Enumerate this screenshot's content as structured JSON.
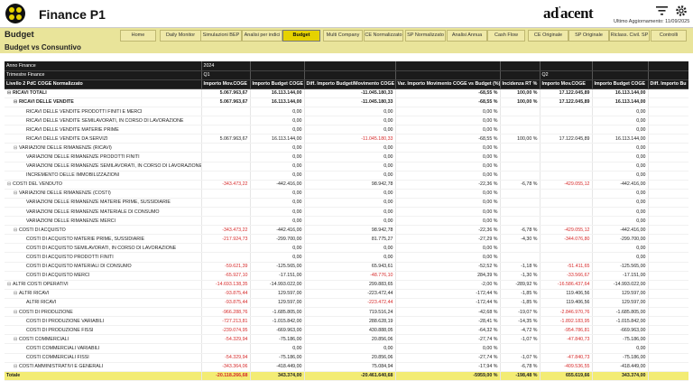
{
  "header": {
    "app_title": "Finance P1",
    "brand_main": "ad",
    "brand_accent": "acent",
    "last_update": "Ultimo Aggiornamento: 11/09/2025"
  },
  "page": {
    "title": "Budget",
    "subtitle": "Budget vs Consuntivo"
  },
  "nav": [
    {
      "label": "Home"
    },
    {
      "label": "Daily Monitor"
    },
    {
      "label": "Simulazioni BEP"
    },
    {
      "label": "Analisi per indici"
    },
    {
      "label": "Budget",
      "active": true
    },
    {
      "label": "Multi Company"
    },
    {
      "label": "CE Normalizzato"
    },
    {
      "label": "SP Normalizzato"
    },
    {
      "label": "Analisi Annua"
    },
    {
      "label": "Cash Flow"
    },
    {
      "label": "CE Originale"
    },
    {
      "label": "SP Originale"
    },
    {
      "label": "Riclass. Civil. SP"
    },
    {
      "label": "Controlli"
    }
  ],
  "table": {
    "header_rows": [
      [
        "Anno Finance",
        "2024",
        "",
        "",
        "",
        "",
        "",
        "",
        ""
      ],
      [
        "Trimestre Finance",
        "Q1",
        "",
        "",
        "",
        "",
        "Q2",
        "",
        ""
      ],
      [
        "Livello 2 PdC COGE Normalizzato",
        "Importo Mov.COGE",
        "Importo Budget COGE",
        "Diff. Importo Budget/Movimento COGE",
        "Var. Importo Movimento COGE vs Budget (%)",
        "Incidenza RT %",
        "Importo Mov.COGE",
        "Importo Budget COGE",
        "Diff. Importo Bu"
      ]
    ],
    "rows": [
      {
        "indent": 0,
        "toggle": "⊟",
        "bold": true,
        "cells": [
          "RICAVI TOTALI",
          "5.067.963,67",
          "16.113.144,00",
          "-11.045.180,33",
          "-68,55 %",
          "100,00 %",
          "17.122.045,89",
          "16.113.144,00",
          ""
        ]
      },
      {
        "indent": 1,
        "toggle": "⊟",
        "bold": true,
        "cells": [
          "RICAVI DELLE VENDITE",
          "5.067.963,67",
          "16.113.144,00",
          "-11.045.180,33",
          "-68,55 %",
          "100,00 %",
          "17.122.045,89",
          "16.113.144,00",
          ""
        ]
      },
      {
        "indent": 2,
        "cells": [
          "RICAVI DELLE VENDITE PRODOTTI FINITI E MERCI",
          "",
          "0,00",
          "0,00",
          "0,00 %",
          "",
          "",
          "0,00",
          ""
        ]
      },
      {
        "indent": 2,
        "cells": [
          "RICAVI DELLE VENDITE SEMILAVORATI, IN CORSO DI LAVORAZIONE",
          "",
          "0,00",
          "0,00",
          "0,00 %",
          "",
          "",
          "0,00",
          ""
        ]
      },
      {
        "indent": 2,
        "cells": [
          "RICAVI DELLE VENDITE MATERIE PRIME",
          "",
          "0,00",
          "0,00",
          "0,00 %",
          "",
          "",
          "0,00",
          ""
        ]
      },
      {
        "indent": 2,
        "cells": [
          "RICAVI DELLE VENDITE DA SERVIZI",
          "5.067.963,67",
          "16.113.144,00",
          "-11.045.180,33",
          "-68,55 %",
          "100,00 %",
          "17.122.045,89",
          "16.113.144,00",
          ""
        ]
      },
      {
        "indent": 1,
        "toggle": "⊟",
        "cells": [
          "VARIAZIONI DELLE RIMANENZE (RICAVI)",
          "",
          "0,00",
          "0,00",
          "0,00 %",
          "",
          "",
          "0,00",
          ""
        ]
      },
      {
        "indent": 2,
        "cells": [
          "VARIAZIONI DELLE RIMANENZE PRODOTTI FINITI",
          "",
          "0,00",
          "0,00",
          "0,00 %",
          "",
          "",
          "0,00",
          ""
        ]
      },
      {
        "indent": 2,
        "cells": [
          "VARIAZIONI DELLE RIMANENZE SEMILAVORATI, IN CORSO DI LAVORAZIONE",
          "",
          "0,00",
          "0,00",
          "0,00 %",
          "",
          "",
          "0,00",
          ""
        ]
      },
      {
        "indent": 2,
        "cells": [
          "INCREMENTO DELLE IMMOBILIZZAZIONI",
          "",
          "0,00",
          "0,00",
          "0,00 %",
          "",
          "",
          "0,00",
          ""
        ]
      },
      {
        "indent": 0,
        "toggle": "⊟",
        "cells": [
          "COSTI DEL VENDUTO",
          "-343.473,22",
          "-442.416,00",
          "98.942,78",
          "-22,36 %",
          "-6,78 %",
          "-429.055,12",
          "-442.416,00",
          ""
        ]
      },
      {
        "indent": 1,
        "toggle": "⊟",
        "cells": [
          "VARIAZIONI DELLE RIMANENZE (COSTI)",
          "",
          "0,00",
          "0,00",
          "0,00 %",
          "",
          "",
          "0,00",
          ""
        ]
      },
      {
        "indent": 2,
        "cells": [
          "VARIAZIONI DELLE RIMANENZE MATERIE PRIME, SUSSIDIARIE",
          "",
          "0,00",
          "0,00",
          "0,00 %",
          "",
          "",
          "0,00",
          ""
        ]
      },
      {
        "indent": 2,
        "cells": [
          "VARIAZIONI DELLE RIMANENZE MATERIALE DI CONSUMO",
          "",
          "0,00",
          "0,00",
          "0,00 %",
          "",
          "",
          "0,00",
          ""
        ]
      },
      {
        "indent": 2,
        "cells": [
          "VARIAZIONI DELLE RIMANENZE MERCI",
          "",
          "0,00",
          "0,00",
          "0,00 %",
          "",
          "",
          "0,00",
          ""
        ]
      },
      {
        "indent": 1,
        "toggle": "⊟",
        "cells": [
          "COSTI DI ACQUISTO",
          "-343.473,22",
          "-442.416,00",
          "98.942,78",
          "-22,36 %",
          "-6,78 %",
          "-429.055,12",
          "-442.416,00",
          ""
        ]
      },
      {
        "indent": 2,
        "cells": [
          "COSTI DI ACQUISTO MATERIE PRIME, SUSSIDIARIE",
          "-217.924,73",
          "-299.700,00",
          "81.775,27",
          "-27,29 %",
          "-4,30 %",
          "-344.076,80",
          "-299.700,00",
          ""
        ]
      },
      {
        "indent": 2,
        "cells": [
          "COSTI DI ACQUISTO SEMILAVORATI, IN CORSO DI LAVORAZIONE",
          "",
          "0,00",
          "0,00",
          "0,00 %",
          "",
          "",
          "0,00",
          ""
        ]
      },
      {
        "indent": 2,
        "cells": [
          "COSTI DI ACQUISTO PRODOTTI FINITI",
          "",
          "0,00",
          "0,00",
          "0,00 %",
          "",
          "",
          "0,00",
          ""
        ]
      },
      {
        "indent": 2,
        "cells": [
          "COSTI DI ACQUISTO MATERIALI DI CONSUMO",
          "-59.621,39",
          "-125.565,00",
          "65.943,61",
          "-52,52 %",
          "-1,18 %",
          "-51.411,65",
          "-125.565,00",
          ""
        ]
      },
      {
        "indent": 2,
        "cells": [
          "COSTI DI ACQUISTO MERCI",
          "-65.927,10",
          "-17.151,00",
          "-48.776,10",
          "284,39 %",
          "-1,30 %",
          "-33.566,67",
          "-17.151,00",
          ""
        ]
      },
      {
        "indent": 0,
        "toggle": "⊟",
        "cells": [
          "ALTRI COSTI OPERATIVI",
          "-14.693.138,35",
          "-14.993.022,00",
          "299.883,65",
          "-2,00 %",
          "-289,92 %",
          "-16.586.437,64",
          "-14.993.022,00",
          ""
        ]
      },
      {
        "indent": 1,
        "toggle": "⊟",
        "cells": [
          "ALTRI RICAVI",
          "-93.875,44",
          "129.597,00",
          "-223.472,44",
          "-172,44 %",
          "-1,85 %",
          "119.406,56",
          "129.597,00",
          ""
        ]
      },
      {
        "indent": 2,
        "cells": [
          "ALTRI RICAVI",
          "-93.875,44",
          "129.597,00",
          "-223.472,44",
          "-172,44 %",
          "-1,85 %",
          "119.406,56",
          "129.597,00",
          ""
        ]
      },
      {
        "indent": 1,
        "toggle": "⊟",
        "cells": [
          "COSTI DI PRODUZIONE",
          "-966.288,76",
          "-1.685.805,00",
          "719.516,24",
          "-42,68 %",
          "-19,07 %",
          "-2.846.970,76",
          "-1.685.805,00",
          ""
        ]
      },
      {
        "indent": 2,
        "cells": [
          "COSTI DI PRODUZIONE VARIABILI",
          "-727.213,81",
          "-1.015.842,00",
          "288.628,19",
          "-28,41 %",
          "-14,35 %",
          "-1.892.183,95",
          "-1.015.842,00",
          ""
        ]
      },
      {
        "indent": 2,
        "cells": [
          "COSTI DI PRODUZIONE FISSI",
          "-239.074,95",
          "-669.963,00",
          "430.888,05",
          "-64,32 %",
          "-4,72 %",
          "-954.786,81",
          "-669.963,00",
          ""
        ]
      },
      {
        "indent": 1,
        "toggle": "⊟",
        "cells": [
          "COSTI COMMERCIALI",
          "-54.329,94",
          "-75.186,00",
          "20.856,06",
          "-27,74 %",
          "-1,07 %",
          "-47.840,73",
          "-75.186,00",
          ""
        ]
      },
      {
        "indent": 2,
        "cells": [
          "COSTI COMMERCIALI VARIABILI",
          "",
          "0,00",
          "0,00",
          "0,00 %",
          "",
          "",
          "0,00",
          ""
        ]
      },
      {
        "indent": 2,
        "cells": [
          "COSTI COMMERCIALI FISSI",
          "-54.329,94",
          "-75.186,00",
          "20.856,06",
          "-27,74 %",
          "-1,07 %",
          "-47.840,73",
          "-75.186,00",
          ""
        ]
      },
      {
        "indent": 1,
        "toggle": "⊟",
        "cells": [
          "COSTI AMMINISTRATIVI E GENERALI",
          "-343.364,06",
          "-418.449,00",
          "75.084,94",
          "-17,94 %",
          "-6,78 %",
          "-409.536,55",
          "-418.449,00",
          ""
        ]
      }
    ],
    "total": [
      "Totale",
      "-20.118.266,68",
      "343.374,00",
      "-20.461.640,68",
      "-5959,00 %",
      "-198,48 %",
      "655.619,66",
      "343.374,00",
      ""
    ]
  },
  "colors": {
    "accent_yellow": "#e9e49a",
    "active_tab": "#e6d200",
    "negative": "#d62b2b",
    "header_bg": "#1b1b1b"
  },
  "icons": [
    "app-logo-icon",
    "filter-icon",
    "gear-icon",
    "expand-toggle-icon"
  ]
}
